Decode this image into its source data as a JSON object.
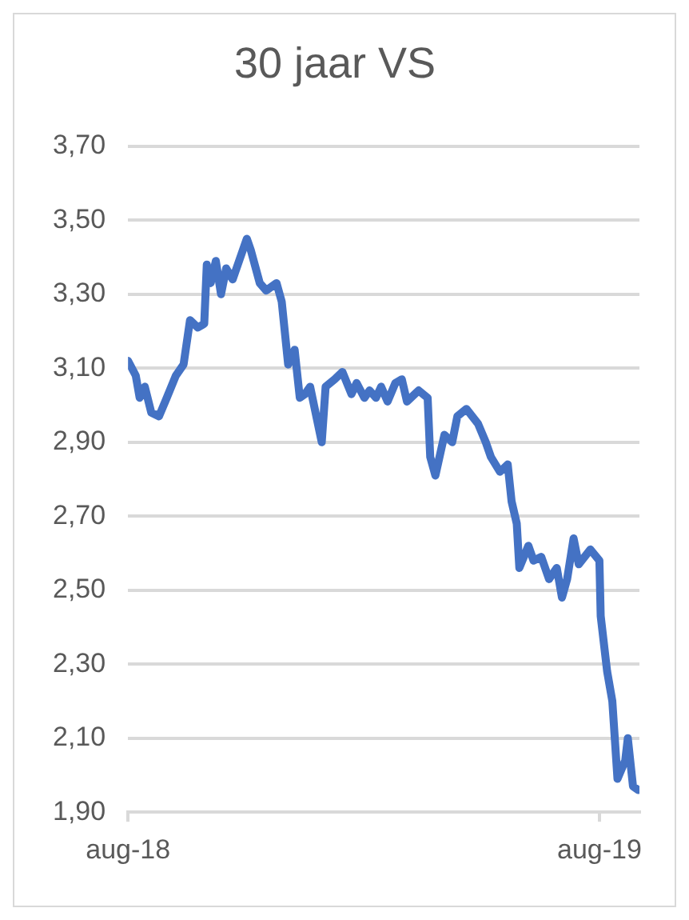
{
  "chart_data": {
    "type": "line",
    "title": "30 jaar VS",
    "x": [
      "2018-08-01",
      "2018-08-07",
      "2018-08-10",
      "2018-08-14",
      "2018-08-19",
      "2018-08-25",
      "2018-08-31",
      "2018-09-07",
      "2018-09-13",
      "2018-09-18",
      "2018-09-24",
      "2018-09-29",
      "2018-10-01",
      "2018-10-04",
      "2018-10-08",
      "2018-10-12",
      "2018-10-16",
      "2018-10-21",
      "2018-10-26",
      "2018-11-01",
      "2018-11-04",
      "2018-11-11",
      "2018-11-16",
      "2018-11-24",
      "2018-11-28",
      "2018-12-03",
      "2018-12-08",
      "2018-12-12",
      "2018-12-16",
      "2018-12-20",
      "2018-12-23",
      "2018-12-29",
      "2019-01-01",
      "2019-01-08",
      "2019-01-14",
      "2019-01-21",
      "2019-01-25",
      "2019-01-31",
      "2019-02-04",
      "2019-02-09",
      "2019-02-13",
      "2019-02-18",
      "2019-02-24",
      "2019-03-01",
      "2019-03-05",
      "2019-03-14",
      "2019-03-21",
      "2019-03-23",
      "2019-03-27",
      "2019-04-03",
      "2019-04-09",
      "2019-04-13",
      "2019-04-20",
      "2019-04-29",
      "2019-05-05",
      "2019-05-09",
      "2019-05-16",
      "2019-05-22",
      "2019-05-25",
      "2019-05-29",
      "2019-05-31",
      "2019-06-07",
      "2019-06-11",
      "2019-06-17",
      "2019-06-23",
      "2019-06-29",
      "2019-07-03",
      "2019-07-07",
      "2019-07-12",
      "2019-07-16",
      "2019-07-25",
      "2019-08-01",
      "2019-08-02",
      "2019-08-07",
      "2019-08-11",
      "2019-08-15",
      "2019-08-21",
      "2019-08-23",
      "2019-08-27",
      "2019-08-31"
    ],
    "series": [
      {
        "color": "#4472c4",
        "values": [
          3.12,
          3.08,
          3.02,
          3.05,
          2.98,
          2.97,
          3.02,
          3.08,
          3.11,
          3.23,
          3.21,
          3.22,
          3.38,
          3.33,
          3.39,
          3.3,
          3.37,
          3.34,
          3.39,
          3.45,
          3.42,
          3.33,
          3.31,
          3.33,
          3.28,
          3.11,
          3.15,
          3.02,
          3.03,
          3.05,
          3.0,
          2.9,
          3.05,
          3.07,
          3.09,
          3.03,
          3.06,
          3.02,
          3.04,
          3.02,
          3.05,
          3.01,
          3.06,
          3.07,
          3.01,
          3.04,
          3.02,
          2.86,
          2.81,
          2.92,
          2.9,
          2.97,
          2.99,
          2.95,
          2.9,
          2.86,
          2.82,
          2.84,
          2.74,
          2.68,
          2.56,
          2.62,
          2.58,
          2.59,
          2.53,
          2.56,
          2.48,
          2.53,
          2.64,
          2.57,
          2.61,
          2.58,
          2.43,
          2.28,
          2.2,
          1.99,
          2.04,
          2.1,
          1.97,
          1.96
        ]
      }
    ],
    "xlim": [
      "2018-08-01",
      "2019-09-01"
    ],
    "xticks": [
      {
        "value": "2018-08-01",
        "label": "aug-18"
      },
      {
        "value": "2019-08-01",
        "label": "aug-19"
      }
    ],
    "ylim": [
      1.9,
      3.7
    ],
    "yticks": [
      {
        "value": 1.9,
        "label": "1,90"
      },
      {
        "value": 2.1,
        "label": "2,10"
      },
      {
        "value": 2.3,
        "label": "2,30"
      },
      {
        "value": 2.5,
        "label": "2,50"
      },
      {
        "value": 2.7,
        "label": "2,70"
      },
      {
        "value": 2.9,
        "label": "2,90"
      },
      {
        "value": 3.1,
        "label": "3,10"
      },
      {
        "value": 3.3,
        "label": "3,30"
      },
      {
        "value": 3.5,
        "label": "3,50"
      },
      {
        "value": 3.7,
        "label": "3,70"
      }
    ],
    "grid": "y",
    "legend": false,
    "marker": "none",
    "line_style": "solid"
  }
}
